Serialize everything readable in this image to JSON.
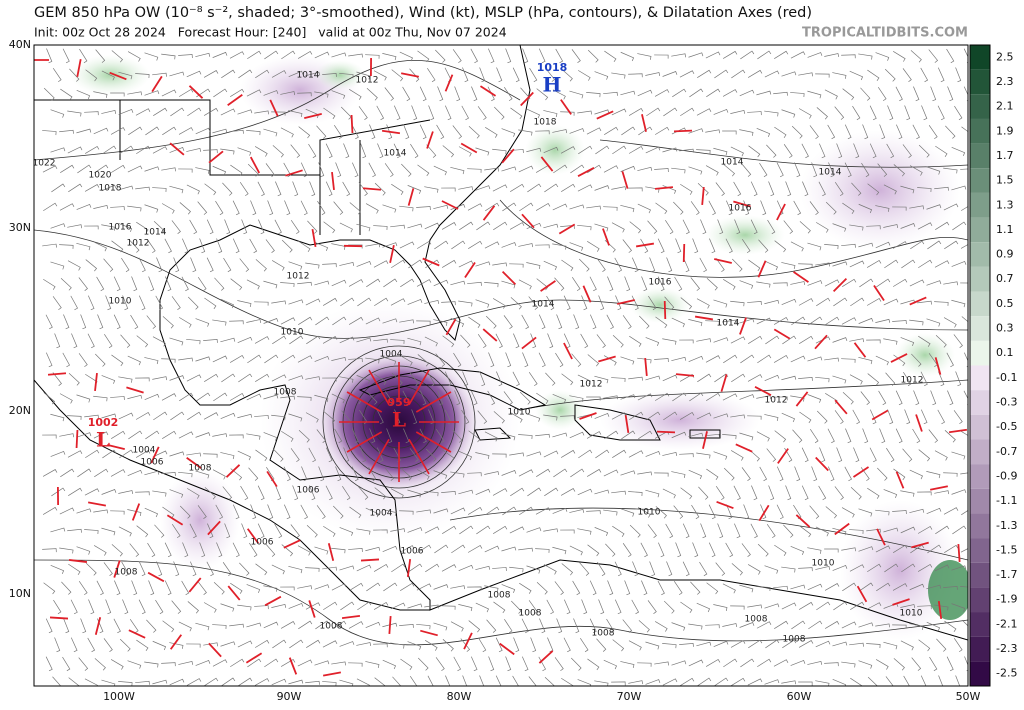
{
  "header": {
    "title": "GEM 850 hPa OW (10⁻⁸ s⁻², shaded; 3°-smoothed), Wind (kt), MSLP (hPa, contours), & Dilatation Axes (red)",
    "subtitle": "Init: 00z Oct 28 2024   Forecast Hour: [240]   valid at 00z Thu, Nov 07 2024",
    "credit": "TROPICALTIDBITS.COM"
  },
  "map": {
    "lat_labels": [
      "40N",
      "30N",
      "20N",
      "10N"
    ],
    "lon_labels": [
      "100W",
      "90W",
      "80W",
      "70W",
      "60W",
      "50W"
    ],
    "centers": [
      {
        "pressure": "1018",
        "letter": "H"
      },
      {
        "pressure": "959",
        "letter": "L"
      },
      {
        "pressure": "1002",
        "letter": "L"
      }
    ],
    "contour_labels": [
      "1014",
      "1012",
      "1018",
      "1014",
      "1022",
      "1020",
      "1018",
      "1016",
      "1014",
      "1012",
      "1012",
      "1010",
      "1010",
      "1014",
      "1016",
      "1014",
      "1016",
      "1014",
      "1014",
      "1012",
      "1012",
      "1012",
      "1010",
      "1008",
      "1004",
      "1004",
      "1006",
      "1008",
      "1006",
      "1006",
      "1004",
      "1006",
      "1008",
      "1008",
      "1008",
      "1008",
      "1010",
      "1010",
      "1010",
      "1008",
      "1008",
      "1008"
    ]
  },
  "colorbar": {
    "labels": [
      "2.5",
      "2.3",
      "2.1",
      "1.9",
      "1.7",
      "1.5",
      "1.3",
      "1.1",
      "0.9",
      "0.7",
      "0.5",
      "0.3",
      "0.1",
      "-0.1",
      "-0.3",
      "-0.5",
      "-0.7",
      "-0.9",
      "-1.1",
      "-1.3",
      "-1.5",
      "-1.7",
      "-1.9",
      "-2.1",
      "-2.3",
      "-2.5"
    ]
  }
}
